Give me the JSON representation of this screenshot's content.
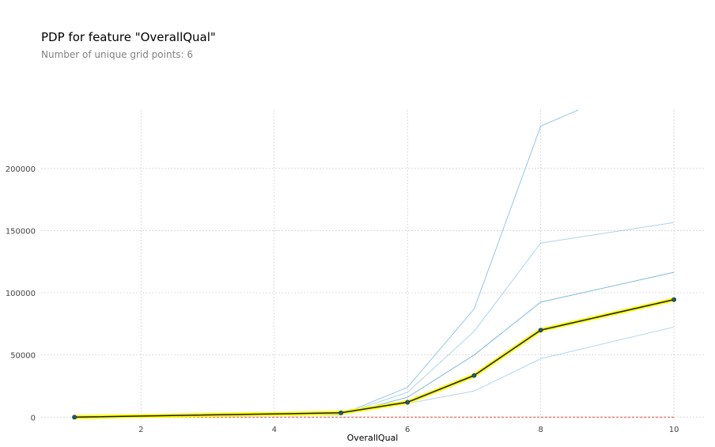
{
  "chart_data": {
    "type": "line",
    "title": "PDP for feature \"OverallQual\"",
    "subtitle": "Number of unique grid points: 6",
    "xlabel": "OverallQual",
    "ylabel": "",
    "x": [
      1,
      5,
      6,
      7,
      8,
      10
    ],
    "xlim": [
      0.5,
      10.45
    ],
    "ylim": [
      -3000,
      247000
    ],
    "xticks": [
      2,
      4,
      6,
      8,
      10
    ],
    "yticks": [
      0,
      50000,
      100000,
      150000,
      200000
    ],
    "grid": true,
    "pdp": [
      0,
      3500,
      12000,
      33500,
      70000,
      94500
    ],
    "ice_lines": [
      [
        0,
        2000,
        24000,
        87000,
        234000,
        280000
      ],
      [
        0,
        2000,
        20000,
        69000,
        140000,
        156500
      ],
      [
        0,
        2000,
        16000,
        50000,
        92500,
        116500
      ],
      [
        0,
        2000,
        11000,
        21000,
        47000,
        72500
      ]
    ],
    "zero_line": 0,
    "colors": {
      "pdp_line": "#1a1a1a",
      "pdp_fill": "#ffff00",
      "pdp_marker": "#1a5f7a",
      "ice_line": "#6baed6",
      "zero_line": "#e34a33",
      "grid": "#cccccc"
    }
  }
}
